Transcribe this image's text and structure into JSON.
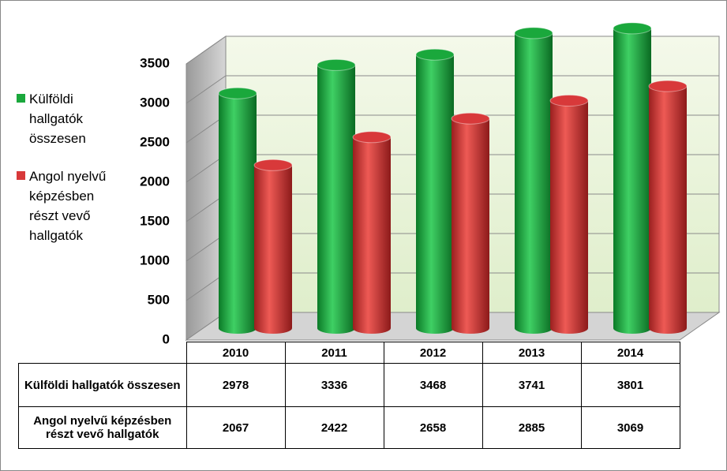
{
  "chart_data": {
    "type": "bar3d",
    "categories": [
      "2010",
      "2011",
      "2012",
      "2013",
      "2014"
    ],
    "series": [
      {
        "name": "Külföldi hallgatók összesen",
        "color": "#1aa83c",
        "values": [
          2978,
          3336,
          3468,
          3741,
          3801
        ]
      },
      {
        "name": "Angol nyelvű képzésben részt vevő hallgatók",
        "color": "#d8393a",
        "values": [
          2067,
          2422,
          2658,
          2885,
          3069
        ]
      }
    ],
    "ylim": [
      0,
      3500
    ],
    "yticks": [
      0,
      500,
      1000,
      1500,
      2000,
      2500,
      3000,
      3500
    ],
    "grid": true,
    "legend": "left"
  }
}
